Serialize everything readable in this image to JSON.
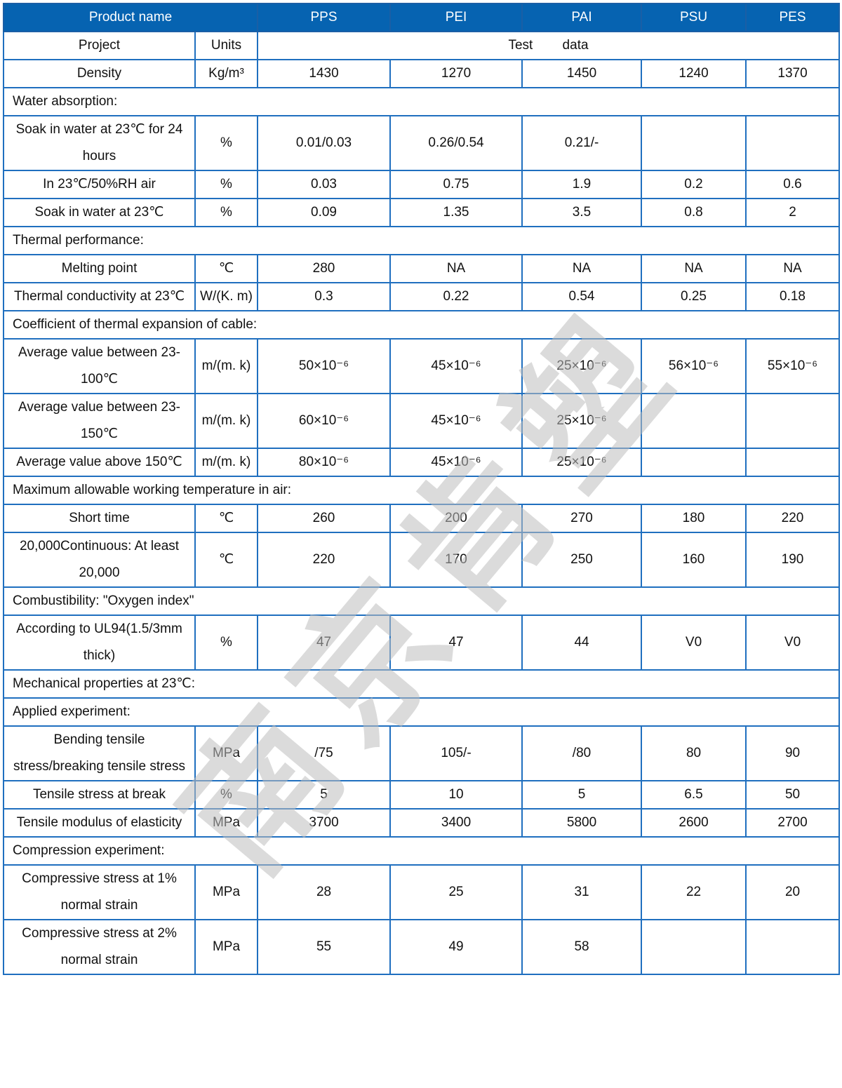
{
  "header": {
    "product_name": "Product name",
    "products": [
      "PPS",
      "PEI",
      "PAI",
      "PSU",
      "PES"
    ]
  },
  "subheader": {
    "project": "Project",
    "units": "Units",
    "test_data": "Test        data"
  },
  "rows": [
    {
      "cells": [
        "Density",
        "Kg/m³",
        "1430",
        "1270",
        "1450",
        "1240",
        "1370"
      ]
    },
    {
      "section": "Water absorption:"
    },
    {
      "cells": [
        "Soak in water at 23℃ for 24 hours",
        "%",
        "0.01/0.03",
        "0.26/0.54",
        "0.21/-",
        "",
        ""
      ]
    },
    {
      "cells": [
        "In 23℃/50%RH air",
        "%",
        "0.03",
        "0.75",
        "1.9",
        "0.2",
        "0.6"
      ]
    },
    {
      "cells": [
        "Soak in water at 23℃",
        "%",
        "0.09",
        "1.35",
        "3.5",
        "0.8",
        "2"
      ]
    },
    {
      "section": "Thermal performance:"
    },
    {
      "cells": [
        "Melting point",
        "℃",
        "280",
        "NA",
        "NA",
        "NA",
        "NA"
      ]
    },
    {
      "cells": [
        "Thermal conductivity at 23℃",
        "W/(K. m)",
        "0.3",
        "0.22",
        "0.54",
        "0.25",
        "0.18"
      ]
    },
    {
      "section": "Coefficient of thermal expansion of cable:"
    },
    {
      "cells": [
        "Average value between 23-100℃",
        "m/(m. k)",
        "50×10⁻⁶",
        "45×10⁻⁶",
        "25×10⁻⁶",
        "56×10⁻⁶",
        "55×10⁻⁶"
      ]
    },
    {
      "cells": [
        "Average value between 23-150℃",
        "m/(m. k)",
        "60×10⁻⁶",
        "45×10⁻⁶",
        "25×10⁻⁶",
        "",
        ""
      ]
    },
    {
      "cells": [
        "Average value above 150℃",
        "m/(m. k)",
        "80×10⁻⁶",
        "45×10⁻⁶",
        "25×10⁻⁶",
        "",
        ""
      ]
    },
    {
      "section": "Maximum allowable working temperature in air:"
    },
    {
      "cells": [
        "Short time",
        "℃",
        "260",
        "200",
        "270",
        "180",
        "220"
      ]
    },
    {
      "cells": [
        "20,000Continuous: At least 20,000",
        "℃",
        "220",
        "170",
        "250",
        "160",
        "190"
      ]
    },
    {
      "section": "Combustibility: \"Oxygen index\""
    },
    {
      "cells": [
        "According to UL94(1.5/3mm thick)",
        "%",
        "47",
        "47",
        "44",
        "V0",
        "V0"
      ]
    },
    {
      "section": "Mechanical properties at 23℃:"
    },
    {
      "section": "Applied experiment:"
    },
    {
      "cells": [
        "Bending tensile stress/breaking tensile stress",
        "MPa",
        "/75",
        "105/-",
        "/80",
        "80",
        "90"
      ]
    },
    {
      "cells": [
        "Tensile stress at break",
        "%",
        "5",
        "10",
        "5",
        "6.5",
        "50"
      ]
    },
    {
      "cells": [
        "Tensile modulus of elasticity",
        "MPa",
        "3700",
        "3400",
        "5800",
        "2600",
        "2700"
      ]
    },
    {
      "section": "Compression experiment:"
    },
    {
      "cells": [
        "Compressive stress at 1% normal strain",
        "MPa",
        "28",
        "25",
        "31",
        "22",
        "20"
      ]
    },
    {
      "cells": [
        "Compressive stress at 2% normal strain",
        "MPa",
        "55",
        "49",
        "58",
        "",
        ""
      ]
    }
  ],
  "watermark": "南京肯塑",
  "colors": {
    "header_bg": "#0663b1",
    "border": "#1f6fbf"
  }
}
